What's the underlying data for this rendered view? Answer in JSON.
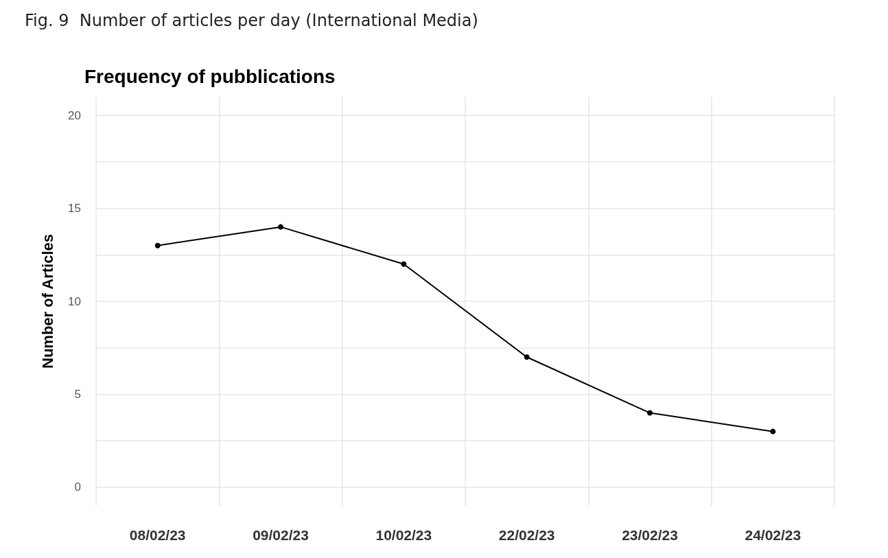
{
  "chart_data": {
    "type": "line",
    "title": "Frequency of pubblications",
    "ylabel": "Number of Articles",
    "annotations": [
      "Fig. 9  Number of articles per day (International Media)"
    ],
    "categories": [
      "08/02/23",
      "09/02/23",
      "10/02/23",
      "22/02/23",
      "23/02/23",
      "24/02/23"
    ],
    "series": [
      {
        "color": "#000000",
        "values": [
          13,
          14,
          12,
          7,
          4,
          3
        ]
      }
    ],
    "ylim": [
      -1,
      21
    ],
    "yticks": [
      0,
      {
        "value": 2.5,
        "label": null
      },
      5,
      {
        "value": 7.5,
        "label": null
      },
      10,
      {
        "value": 12.5,
        "label": null
      },
      15,
      {
        "value": 17.5,
        "label": null
      },
      20
    ],
    "grid": true,
    "marker": "circle",
    "line_style": "solid"
  }
}
